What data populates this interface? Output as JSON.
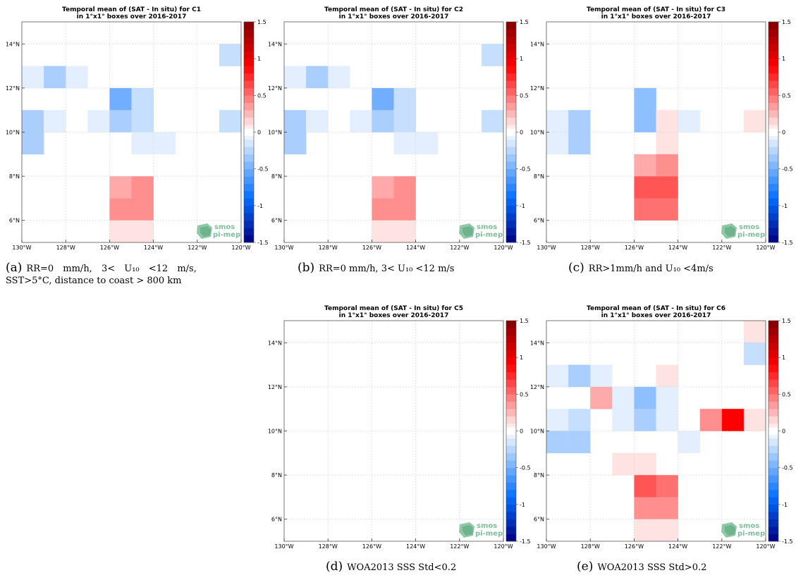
{
  "colorbar": {
    "ticks": [
      "1.5",
      "1",
      "0.5",
      "0",
      "-0.5",
      "-1",
      "-1.5"
    ],
    "bins": [
      -1.5,
      -1.4,
      -1.3,
      -1.2,
      -1.1,
      -1.0,
      -0.9,
      -0.8,
      -0.7,
      -0.6,
      -0.5,
      -0.4,
      -0.3,
      -0.2,
      -0.1,
      -0.05,
      0.05,
      0.1,
      0.2,
      0.3,
      0.4,
      0.5,
      0.6,
      0.7,
      0.8,
      0.9,
      1.0,
      1.1,
      1.2,
      1.3,
      1.4,
      1.5
    ]
  },
  "logo": {
    "line1": "smos",
    "line2": "pi-mep"
  },
  "chart_data": [
    {
      "type": "heatmap",
      "title": "Temporal mean of (SAT - In situ) for C1",
      "subtitle": "in 1°x1° boxes over 2016-2017",
      "xlim": [
        -130,
        -120
      ],
      "ylim": [
        5,
        15
      ],
      "xticks": [
        "130°W",
        "128°W",
        "126°W",
        "124°W",
        "122°W",
        "120°W"
      ],
      "yticks": [
        "6°N",
        "8°N",
        "10°N",
        "12°N",
        "14°N"
      ],
      "caption_label": "(a)",
      "caption_lines": [
        "RR=0 mm/h, 3< U₁₀ <12 m/s,",
        "SST>5°C, distance to coast > 800 km"
      ],
      "cells": [
        {
          "lon": -121,
          "lat": 13,
          "value": -0.2
        },
        {
          "lon": -130,
          "lat": 12,
          "value": -0.1
        },
        {
          "lon": -129,
          "lat": 12,
          "value": -0.3
        },
        {
          "lon": -128,
          "lat": 12,
          "value": -0.1
        },
        {
          "lon": -126,
          "lat": 11,
          "value": -0.5
        },
        {
          "lon": -125,
          "lat": 11,
          "value": -0.2
        },
        {
          "lon": -130,
          "lat": 10,
          "value": -0.3
        },
        {
          "lon": -129,
          "lat": 10,
          "value": -0.1
        },
        {
          "lon": -127,
          "lat": 10,
          "value": -0.1
        },
        {
          "lon": -126,
          "lat": 10,
          "value": -0.3
        },
        {
          "lon": -125,
          "lat": 10,
          "value": -0.2
        },
        {
          "lon": -121,
          "lat": 10,
          "value": -0.2
        },
        {
          "lon": -130,
          "lat": 9,
          "value": -0.3
        },
        {
          "lon": -125,
          "lat": 9,
          "value": -0.1
        },
        {
          "lon": -124,
          "lat": 9,
          "value": -0.1
        },
        {
          "lon": -126,
          "lat": 7,
          "value": 0.3
        },
        {
          "lon": -125,
          "lat": 7,
          "value": 0.4
        },
        {
          "lon": -126,
          "lat": 6,
          "value": 0.4
        },
        {
          "lon": -125,
          "lat": 6,
          "value": 0.4
        },
        {
          "lon": -126,
          "lat": 5,
          "value": 0.1
        },
        {
          "lon": -125,
          "lat": 5,
          "value": 0.1
        }
      ]
    },
    {
      "type": "heatmap",
      "title": "Temporal mean of (SAT - In situ) for C2",
      "subtitle": "in 1°x1° boxes over 2016-2017",
      "xlim": [
        -130,
        -120
      ],
      "ylim": [
        5,
        15
      ],
      "xticks": [
        "130°W",
        "128°W",
        "126°W",
        "124°W",
        "122°W",
        "120°W"
      ],
      "yticks": [
        "6°N",
        "8°N",
        "10°N",
        "12°N",
        "14°N"
      ],
      "caption_label": "(b)",
      "caption_lines": [
        "RR=0 mm/h, 3< U₁₀ <12 m/s"
      ],
      "cells": [
        {
          "lon": -121,
          "lat": 13,
          "value": -0.2
        },
        {
          "lon": -130,
          "lat": 12,
          "value": -0.1
        },
        {
          "lon": -129,
          "lat": 12,
          "value": -0.3
        },
        {
          "lon": -128,
          "lat": 12,
          "value": -0.1
        },
        {
          "lon": -126,
          "lat": 11,
          "value": -0.5
        },
        {
          "lon": -125,
          "lat": 11,
          "value": -0.2
        },
        {
          "lon": -130,
          "lat": 10,
          "value": -0.3
        },
        {
          "lon": -129,
          "lat": 10,
          "value": -0.1
        },
        {
          "lon": -127,
          "lat": 10,
          "value": -0.1
        },
        {
          "lon": -126,
          "lat": 10,
          "value": -0.3
        },
        {
          "lon": -125,
          "lat": 10,
          "value": -0.2
        },
        {
          "lon": -121,
          "lat": 10,
          "value": -0.2
        },
        {
          "lon": -130,
          "lat": 9,
          "value": -0.3
        },
        {
          "lon": -125,
          "lat": 9,
          "value": -0.1
        },
        {
          "lon": -124,
          "lat": 9,
          "value": -0.1
        },
        {
          "lon": -126,
          "lat": 7,
          "value": 0.3
        },
        {
          "lon": -125,
          "lat": 7,
          "value": 0.4
        },
        {
          "lon": -126,
          "lat": 6,
          "value": 0.4
        },
        {
          "lon": -125,
          "lat": 6,
          "value": 0.4
        },
        {
          "lon": -126,
          "lat": 5,
          "value": 0.1
        },
        {
          "lon": -125,
          "lat": 5,
          "value": 0.1
        }
      ]
    },
    {
      "type": "heatmap",
      "title": "Temporal mean of (SAT - In situ) for C3",
      "subtitle": "in 1°x1° boxes over 2016-2017",
      "xlim": [
        -130,
        -120
      ],
      "ylim": [
        5,
        15
      ],
      "xticks": [
        "130°W",
        "128°W",
        "126°W",
        "124°W",
        "122°W",
        "120°W"
      ],
      "yticks": [
        "6°N",
        "8°N",
        "10°N",
        "12°N",
        "14°N"
      ],
      "caption_label": "(c)",
      "caption_lines": [
        "RR>1mm/h and U₁₀ <4m/s"
      ],
      "cells": [
        {
          "lon": -126,
          "lat": 11,
          "value": -0.4
        },
        {
          "lon": -130,
          "lat": 10,
          "value": -0.1
        },
        {
          "lon": -129,
          "lat": 10,
          "value": -0.3
        },
        {
          "lon": -126,
          "lat": 10,
          "value": -0.4
        },
        {
          "lon": -125,
          "lat": 10,
          "value": 0.1
        },
        {
          "lon": -124,
          "lat": 10,
          "value": -0.1
        },
        {
          "lon": -121,
          "lat": 10,
          "value": 0.1
        },
        {
          "lon": -130,
          "lat": 9,
          "value": -0.1
        },
        {
          "lon": -129,
          "lat": 9,
          "value": -0.3
        },
        {
          "lon": -125,
          "lat": 9,
          "value": 0.1
        },
        {
          "lon": -126,
          "lat": 8,
          "value": 0.3
        },
        {
          "lon": -125,
          "lat": 8,
          "value": 0.4
        },
        {
          "lon": -126,
          "lat": 7,
          "value": 0.6
        },
        {
          "lon": -125,
          "lat": 7,
          "value": 0.6
        },
        {
          "lon": -126,
          "lat": 6,
          "value": 0.5
        },
        {
          "lon": -125,
          "lat": 6,
          "value": 0.5
        }
      ]
    },
    {
      "type": "heatmap",
      "title": "Temporal mean of (SAT - In situ) for C5",
      "subtitle": "in 1°x1° boxes over 2016-2017",
      "xlim": [
        -130,
        -120
      ],
      "ylim": [
        5,
        15
      ],
      "xticks": [
        "130°W",
        "128°W",
        "126°W",
        "124°W",
        "122°W",
        "120°W"
      ],
      "yticks": [
        "6°N",
        "8°N",
        "10°N",
        "12°N",
        "14°N"
      ],
      "caption_label": "(d)",
      "caption_lines": [
        "WOA2013 SSS Std<0.2"
      ],
      "cells": []
    },
    {
      "type": "heatmap",
      "title": "Temporal mean of (SAT - In situ) for C6",
      "subtitle": "in 1°x1° boxes over 2016-2017",
      "xlim": [
        -130,
        -120
      ],
      "ylim": [
        5,
        15
      ],
      "xticks": [
        "130°W",
        "128°W",
        "126°W",
        "124°W",
        "122°W",
        "120°W"
      ],
      "yticks": [
        "6°N",
        "8°N",
        "10°N",
        "12°N",
        "14°N"
      ],
      "caption_label": "(e)",
      "caption_lines": [
        "WOA2013 SSS Std>0.2"
      ],
      "cells": [
        {
          "lon": -121,
          "lat": 14,
          "value": 0.1
        },
        {
          "lon": -121,
          "lat": 13,
          "value": -0.2
        },
        {
          "lon": -130,
          "lat": 12,
          "value": -0.1
        },
        {
          "lon": -129,
          "lat": 12,
          "value": -0.3
        },
        {
          "lon": -128,
          "lat": 12,
          "value": -0.1
        },
        {
          "lon": -125,
          "lat": 12,
          "value": 0.1
        },
        {
          "lon": -128,
          "lat": 11,
          "value": 0.3
        },
        {
          "lon": -127,
          "lat": 11,
          "value": -0.1
        },
        {
          "lon": -126,
          "lat": 11,
          "value": -0.4
        },
        {
          "lon": -125,
          "lat": 11,
          "value": -0.1
        },
        {
          "lon": -130,
          "lat": 10,
          "value": -0.1
        },
        {
          "lon": -129,
          "lat": 10,
          "value": -0.2
        },
        {
          "lon": -127,
          "lat": 10,
          "value": -0.1
        },
        {
          "lon": -126,
          "lat": 10,
          "value": -0.3
        },
        {
          "lon": -125,
          "lat": 10,
          "value": -0.1
        },
        {
          "lon": -123,
          "lat": 10,
          "value": 0.4
        },
        {
          "lon": -122,
          "lat": 10,
          "value": 0.9
        },
        {
          "lon": -121,
          "lat": 10,
          "value": 0.1
        },
        {
          "lon": -130,
          "lat": 9,
          "value": -0.3
        },
        {
          "lon": -129,
          "lat": 9,
          "value": -0.3
        },
        {
          "lon": -124,
          "lat": 9,
          "value": -0.1
        },
        {
          "lon": -127,
          "lat": 8,
          "value": 0.1
        },
        {
          "lon": -126,
          "lat": 8,
          "value": 0.1
        },
        {
          "lon": -126,
          "lat": 7,
          "value": 0.6
        },
        {
          "lon": -125,
          "lat": 7,
          "value": 0.5
        },
        {
          "lon": -126,
          "lat": 6,
          "value": 0.4
        },
        {
          "lon": -125,
          "lat": 6,
          "value": 0.4
        },
        {
          "lon": -126,
          "lat": 5,
          "value": 0.1
        },
        {
          "lon": -125,
          "lat": 5,
          "value": 0.1
        }
      ]
    }
  ]
}
